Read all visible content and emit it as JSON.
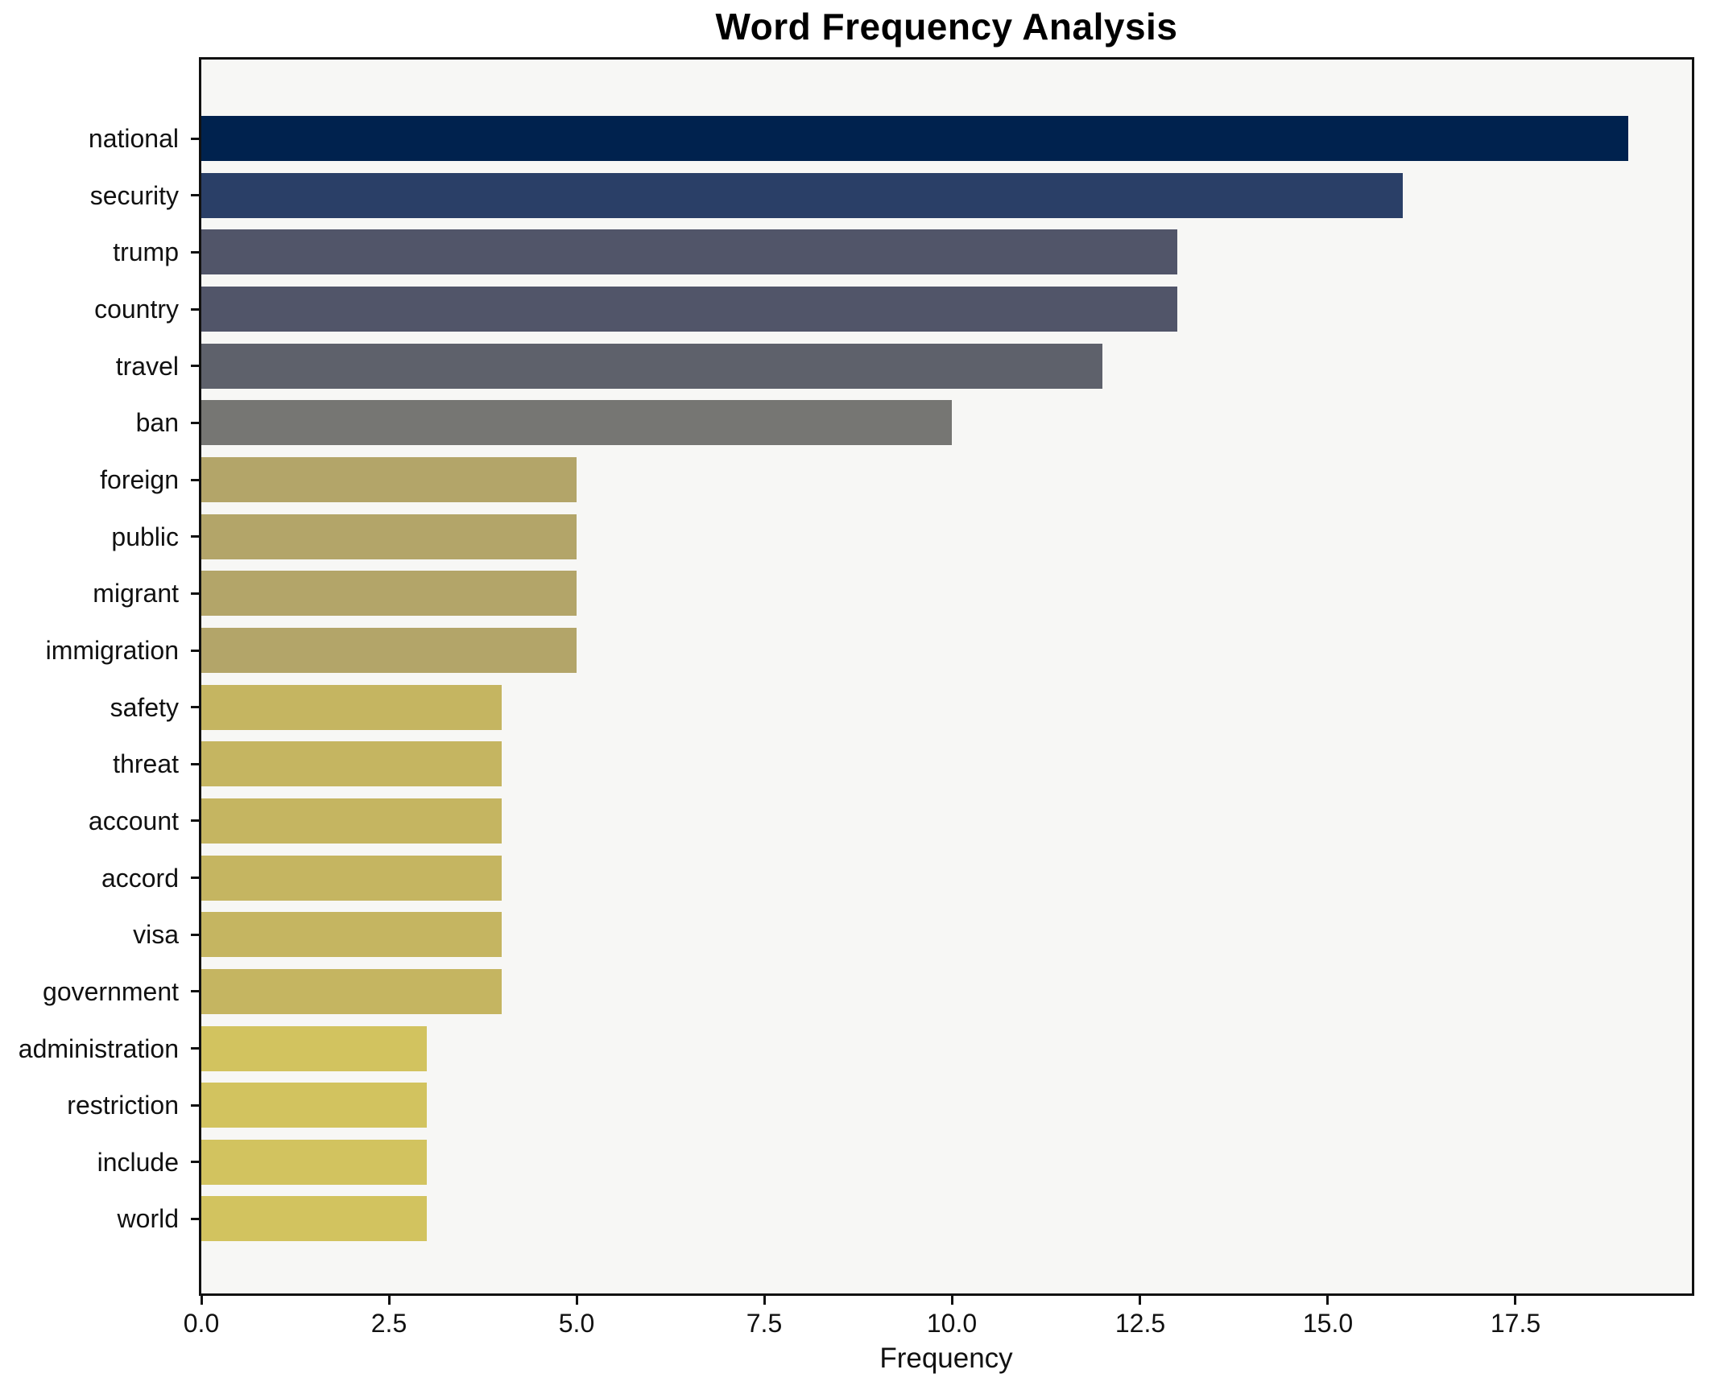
{
  "chart_data": {
    "type": "bar",
    "orientation": "horizontal",
    "title": "Word Frequency Analysis",
    "xlabel": "Frequency",
    "ylabel": "",
    "categories": [
      "national",
      "security",
      "trump",
      "country",
      "travel",
      "ban",
      "foreign",
      "public",
      "migrant",
      "immigration",
      "safety",
      "threat",
      "account",
      "accord",
      "visa",
      "government",
      "administration",
      "restriction",
      "include",
      "world"
    ],
    "values": [
      19,
      16,
      13,
      13,
      12,
      10,
      5,
      5,
      5,
      5,
      4,
      4,
      4,
      4,
      4,
      4,
      3,
      3,
      3,
      3
    ],
    "bar_colors": [
      "#00224e",
      "#2a3f67",
      "#515569",
      "#515569",
      "#5e616b",
      "#767673",
      "#b3a569",
      "#b3a569",
      "#b3a569",
      "#b3a569",
      "#c5b561",
      "#c5b561",
      "#c5b561",
      "#c5b561",
      "#c5b561",
      "#c5b561",
      "#d2c35f",
      "#d2c35f",
      "#d2c35f",
      "#d2c35f"
    ],
    "xlim": [
      0,
      19.85
    ],
    "xticks": [
      0,
      2.5,
      5,
      7.5,
      10,
      12.5,
      15,
      17.5
    ],
    "xtick_labels": [
      "0.0",
      "2.5",
      "5.0",
      "7.5",
      "10.0",
      "12.5",
      "15.0",
      "17.5"
    ],
    "grid": false,
    "legend": "none",
    "plot_background": "#f7f7f5",
    "figure_background": "#ffffff",
    "spine_color": "#111111",
    "text_color": "#111111"
  }
}
